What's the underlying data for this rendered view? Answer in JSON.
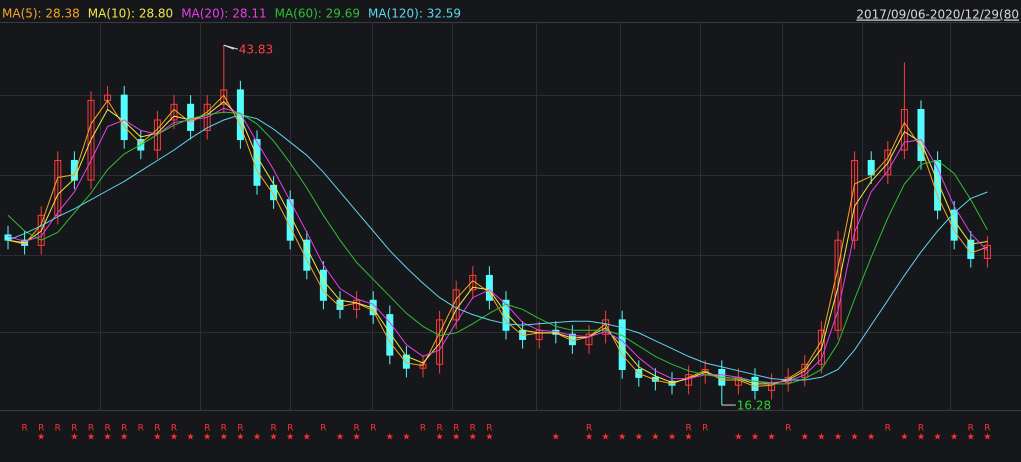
{
  "chart_data": {
    "type": "candlestick",
    "subtitle": "2017/09/06-2020/12/29(80",
    "ylim": [
      15.9,
      45.6
    ],
    "up_color": "#ff3b3b",
    "down_color": "#54fcfc",
    "open": [
      29.3,
      28.9,
      28.5,
      30.8,
      35.0,
      33.5,
      39.6,
      40.0,
      36.6,
      35.8,
      38.1,
      39.3,
      37.3,
      39.3,
      40.4,
      36.6,
      33.1,
      32.0,
      28.9,
      26.6,
      24.3,
      23.6,
      24.3,
      23.2,
      20.1,
      19.1,
      19.4,
      22.8,
      25.1,
      26.2,
      24.3,
      22.0,
      21.3,
      22.0,
      21.7,
      20.9,
      21.7,
      22.8,
      19.0,
      18.4,
      18.1,
      17.8,
      18.6,
      19.0,
      17.8,
      18.4,
      17.4,
      18.0,
      18.4,
      19.4,
      22.0,
      28.9,
      35.0,
      33.9,
      35.8,
      38.9,
      35.0,
      31.2,
      28.9,
      27.5
    ],
    "high": [
      30.0,
      29.6,
      31.5,
      35.7,
      35.7,
      40.3,
      40.7,
      40.7,
      37.3,
      38.8,
      40.0,
      40.0,
      40.0,
      43.83,
      41.1,
      37.3,
      33.8,
      32.7,
      29.6,
      27.3,
      25.0,
      25.0,
      25.0,
      23.9,
      20.8,
      20.1,
      23.5,
      25.8,
      26.9,
      26.9,
      25.0,
      22.7,
      22.7,
      22.7,
      22.4,
      22.4,
      23.5,
      23.5,
      19.7,
      19.1,
      18.8,
      19.3,
      19.7,
      19.7,
      19.1,
      19.1,
      18.7,
      19.1,
      20.1,
      22.7,
      29.6,
      35.7,
      35.7,
      36.5,
      42.5,
      39.6,
      35.7,
      31.9,
      29.6,
      29.2
    ],
    "low": [
      28.2,
      27.8,
      27.8,
      30.1,
      32.8,
      32.8,
      38.9,
      35.9,
      35.1,
      35.1,
      37.4,
      36.6,
      36.6,
      38.6,
      35.9,
      32.4,
      31.3,
      28.2,
      25.9,
      23.6,
      22.9,
      22.9,
      22.5,
      19.4,
      18.4,
      18.4,
      18.7,
      22.1,
      24.4,
      23.6,
      21.3,
      20.6,
      20.6,
      21.0,
      20.2,
      20.2,
      21.0,
      18.3,
      17.7,
      17.4,
      17.1,
      17.1,
      17.9,
      16.28,
      17.1,
      16.7,
      16.7,
      17.3,
      17.7,
      18.7,
      21.3,
      28.2,
      33.2,
      33.2,
      35.1,
      34.3,
      30.5,
      28.2,
      26.8,
      26.8
    ],
    "close": [
      28.9,
      28.5,
      30.8,
      35.0,
      33.5,
      39.6,
      40.0,
      36.6,
      35.8,
      38.1,
      39.3,
      37.3,
      39.3,
      40.4,
      36.6,
      33.1,
      32.0,
      28.9,
      26.6,
      24.3,
      23.6,
      24.3,
      23.2,
      20.1,
      19.1,
      19.4,
      22.8,
      25.1,
      26.2,
      24.3,
      22.0,
      21.3,
      22.0,
      21.7,
      20.9,
      21.7,
      22.8,
      19.0,
      18.4,
      18.1,
      17.8,
      18.6,
      19.0,
      17.8,
      18.4,
      17.4,
      18.0,
      18.4,
      19.4,
      22.0,
      28.9,
      35.0,
      33.9,
      35.8,
      38.9,
      35.0,
      31.2,
      28.9,
      27.5,
      28.5
    ],
    "series": [
      {
        "name": "MA(5): 28.38",
        "color": "#f5a623",
        "values": [
          28.9,
          28.6,
          30.1,
          33.7,
          33.9,
          37.8,
          39.6,
          37.6,
          36.3,
          37.4,
          38.9,
          37.9,
          38.7,
          40.0,
          37.7,
          34.2,
          32.4,
          29.9,
          27.4,
          25.0,
          23.8,
          24.1,
          23.5,
          21.1,
          19.5,
          19.3,
          21.8,
          24.4,
          25.8,
          24.9,
          22.7,
          21.6,
          21.8,
          21.8,
          21.2,
          21.5,
          22.5,
          20.1,
          18.7,
          18.2,
          17.9,
          18.4,
          18.9,
          18.2,
          18.2,
          17.7,
          17.8,
          18.3,
          19.1,
          21.2,
          26.8,
          33.2,
          33.8,
          35.2,
          37.9,
          36.0,
          32.3,
          29.6,
          27.9,
          28.38
        ]
      },
      {
        "name": "MA(10): 28.80",
        "color": "#f2e64a",
        "values": [
          28.9,
          28.7,
          29.6,
          32.4,
          33.6,
          36.6,
          38.9,
          38.0,
          36.8,
          37.1,
          38.4,
          38.1,
          38.5,
          39.5,
          38.3,
          35.3,
          33.2,
          30.8,
          28.3,
          25.8,
          24.3,
          24.1,
          23.7,
          21.8,
          20.0,
          19.5,
          21.0,
          23.6,
          25.3,
          25.1,
          23.3,
          22.0,
          21.8,
          21.8,
          21.4,
          21.5,
          22.2,
          20.7,
          19.2,
          18.5,
          18.0,
          18.3,
          18.8,
          18.4,
          18.3,
          17.9,
          17.9,
          18.2,
          18.9,
          20.6,
          25.3,
          31.5,
          33.4,
          34.8,
          37.2,
          36.4,
          33.4,
          30.4,
          28.6,
          28.8
        ]
      },
      {
        "name": "MA(20): 28.11",
        "color": "#e83ee8",
        "values": [
          29.2,
          28.8,
          29.2,
          31.0,
          32.6,
          35.0,
          37.6,
          38.1,
          37.3,
          37.0,
          37.9,
          38.1,
          38.3,
          39.0,
          38.6,
          36.4,
          34.3,
          31.9,
          29.5,
          27.0,
          25.2,
          24.4,
          24.0,
          22.6,
          20.9,
          20.0,
          20.5,
          22.6,
          24.5,
          25.1,
          24.0,
          22.6,
          22.0,
          21.9,
          21.6,
          21.5,
          21.9,
          21.2,
          19.9,
          18.9,
          18.3,
          18.3,
          18.6,
          18.6,
          18.4,
          18.1,
          18.0,
          18.1,
          18.6,
          19.8,
          23.5,
          29.5,
          32.6,
          34.2,
          36.4,
          36.6,
          34.4,
          31.5,
          29.4,
          28.11
        ]
      },
      {
        "name": "MA(60): 29.69",
        "color": "#2fbf2f",
        "values": [
          30.8,
          29.6,
          28.9,
          29.5,
          31.0,
          32.5,
          34.3,
          35.5,
          36.2,
          37.0,
          37.7,
          38.2,
          38.5,
          38.7,
          38.6,
          37.8,
          36.5,
          34.8,
          32.9,
          30.8,
          28.9,
          27.2,
          25.9,
          24.6,
          23.3,
          22.3,
          21.6,
          21.8,
          22.5,
          23.3,
          24.0,
          23.6,
          22.9,
          22.3,
          22.0,
          22.0,
          22.0,
          21.6,
          20.8,
          20.0,
          19.4,
          18.9,
          18.6,
          18.4,
          18.3,
          18.1,
          17.9,
          17.9,
          18.3,
          19.0,
          21.0,
          24.4,
          27.6,
          30.6,
          33.2,
          34.7,
          35.0,
          34.0,
          32.0,
          29.69
        ]
      },
      {
        "name": "MA(120): 32.59",
        "color": "#5fd6ea",
        "values": [
          28.9,
          29.4,
          30.0,
          30.7,
          31.3,
          32.0,
          32.7,
          33.4,
          34.2,
          35.0,
          35.8,
          36.7,
          37.5,
          38.1,
          38.5,
          38.2,
          37.4,
          36.4,
          35.4,
          34.1,
          32.6,
          31.1,
          29.6,
          28.1,
          26.8,
          25.6,
          24.5,
          23.7,
          23.2,
          22.8,
          22.5,
          22.4,
          22.5,
          22.6,
          22.7,
          22.7,
          22.5,
          22.2,
          21.8,
          21.2,
          20.6,
          20.0,
          19.5,
          19.2,
          18.9,
          18.6,
          18.3,
          18.2,
          18.2,
          18.4,
          19.0,
          20.5,
          22.4,
          24.3,
          26.2,
          28.0,
          29.6,
          31.0,
          32.1,
          32.59
        ]
      }
    ],
    "signals": [
      {
        "label": "R",
        "at": [
          1,
          2,
          3,
          4,
          5,
          6,
          7,
          8,
          9,
          10,
          12,
          13,
          14,
          16,
          17,
          19,
          21,
          22,
          25,
          26,
          27,
          28,
          29,
          35,
          41,
          42,
          47,
          53,
          55,
          58,
          59
        ]
      },
      {
        "label": "★",
        "at": [
          2,
          4,
          5,
          6,
          7,
          9,
          10,
          11,
          12,
          13,
          14,
          15,
          16,
          17,
          18,
          20,
          21,
          23,
          24,
          26,
          27,
          28,
          29,
          33,
          35,
          36,
          37,
          38,
          39,
          40,
          41,
          44,
          45,
          46,
          48,
          49,
          50,
          51,
          52,
          54,
          55,
          56,
          57,
          58,
          59
        ]
      }
    ]
  }
}
